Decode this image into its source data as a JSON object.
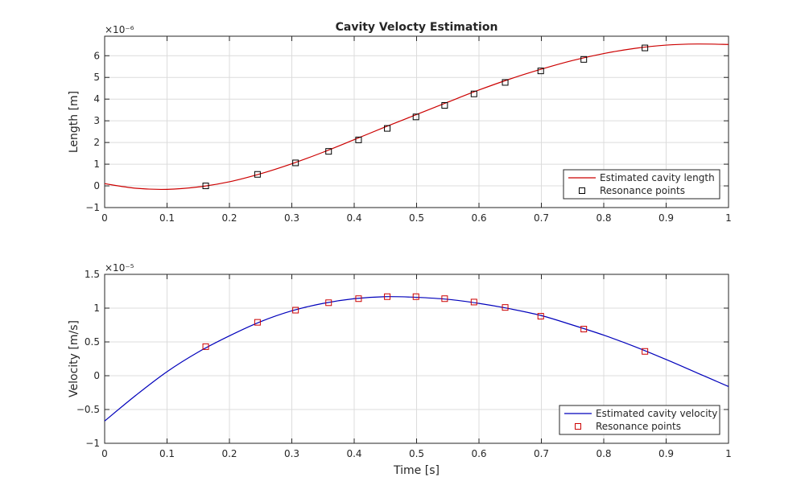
{
  "chart_data": [
    {
      "type": "line",
      "title": "Cavity Velocty Estimation",
      "xlabel": "",
      "ylabel": "Length [m]",
      "exponent_label": "×10⁻⁶",
      "exponent": 1e-06,
      "xlim": [
        0,
        1
      ],
      "ylim": [
        -1e-06,
        6.9e-06
      ],
      "x_ticks": [
        0,
        0.1,
        0.2,
        0.3,
        0.4,
        0.5,
        0.6,
        0.7,
        0.8,
        0.9,
        1
      ],
      "x_tick_labels": [
        "0",
        "0.1",
        "0.2",
        "0.3",
        "0.4",
        "0.5",
        "0.6",
        "0.7",
        "0.8",
        "0.9",
        "1"
      ],
      "y_ticks": [
        -1e-06,
        0,
        1e-06,
        2e-06,
        3e-06,
        4e-06,
        5e-06,
        6e-06
      ],
      "y_tick_labels": [
        "−1",
        "0",
        "1",
        "2",
        "3",
        "4",
        "5",
        "6"
      ],
      "grid": true,
      "legend_position": "bottom-right",
      "series": [
        {
          "name": "Estimated cavity length",
          "style": "line",
          "color": "#cc0000",
          "x": [
            0,
            0.05,
            0.1,
            0.15,
            0.2,
            0.25,
            0.3,
            0.35,
            0.4,
            0.45,
            0.5,
            0.55,
            0.6,
            0.65,
            0.7,
            0.75,
            0.8,
            0.85,
            0.9,
            0.95,
            1
          ],
          "y": [
            1e-07,
            -1.1e-07,
            -1.6e-07,
            -5e-08,
            1.9e-07,
            5.6e-07,
            1.02e-06,
            1.55e-06,
            2.13e-06,
            2.72e-06,
            3.29e-06,
            3.86e-06,
            4.42e-06,
            4.93e-06,
            5.38e-06,
            5.78e-06,
            6.1e-06,
            6.34e-06,
            6.49e-06,
            6.54e-06,
            6.52e-06
          ]
        },
        {
          "name": "Resonance points",
          "style": "marker",
          "color": "#000000",
          "x": [
            0.162,
            0.245,
            0.306,
            0.359,
            0.407,
            0.453,
            0.499,
            0.545,
            0.592,
            0.642,
            0.699,
            0.768,
            0.866
          ],
          "y": [
            0,
            5.3e-07,
            1.06e-06,
            1.59e-06,
            2.12e-06,
            2.65e-06,
            3.18e-06,
            3.71e-06,
            4.24e-06,
            4.77e-06,
            5.3e-06,
            5.83e-06,
            6.36e-06
          ]
        }
      ]
    },
    {
      "type": "line",
      "title": "",
      "xlabel": "Time [s]",
      "ylabel": "Velocity [m/s]",
      "exponent_label": "×10⁻⁵",
      "exponent": 1e-05,
      "xlim": [
        0,
        1
      ],
      "ylim": [
        -1e-05,
        1.5e-05
      ],
      "x_ticks": [
        0,
        0.1,
        0.2,
        0.3,
        0.4,
        0.5,
        0.6,
        0.7,
        0.8,
        0.9,
        1
      ],
      "x_tick_labels": [
        "0",
        "0.1",
        "0.2",
        "0.3",
        "0.4",
        "0.5",
        "0.6",
        "0.7",
        "0.8",
        "0.9",
        "1"
      ],
      "y_ticks": [
        -1e-05,
        -5e-06,
        0,
        5e-06,
        1e-05,
        1.5e-05
      ],
      "y_tick_labels": [
        "−1",
        "−0.5",
        "0",
        "0.5",
        "1",
        "1.5"
      ],
      "grid": true,
      "legend_position": "bottom-right",
      "series": [
        {
          "name": "Estimated cavity velocity",
          "style": "line",
          "color": "#0000bb",
          "x": [
            0,
            0.05,
            0.1,
            0.15,
            0.2,
            0.25,
            0.3,
            0.35,
            0.4,
            0.45,
            0.5,
            0.55,
            0.6,
            0.65,
            0.7,
            0.75,
            0.8,
            0.85,
            0.9,
            0.95,
            1
          ],
          "y": [
            -6.7e-06,
            -2.9e-06,
            6e-07,
            3.5e-06,
            5.9e-06,
            8e-06,
            9.6e-06,
            1.07e-05,
            1.14e-05,
            1.17e-05,
            1.16e-05,
            1.13e-05,
            1.07e-05,
            9.9e-06,
            8.9e-06,
            7.5e-06,
            6e-06,
            4.3e-06,
            2.4e-06,
            4e-07,
            -1.6e-06
          ]
        },
        {
          "name": "Resonance points",
          "style": "marker",
          "color": "#cc0000",
          "x": [
            0.162,
            0.245,
            0.306,
            0.359,
            0.407,
            0.453,
            0.499,
            0.545,
            0.592,
            0.642,
            0.699,
            0.768,
            0.866
          ],
          "y": [
            4.3e-06,
            7.9e-06,
            9.7e-06,
            1.08e-05,
            1.14e-05,
            1.17e-05,
            1.17e-05,
            1.14e-05,
            1.09e-05,
            1.01e-05,
            8.8e-06,
            6.9e-06,
            3.6e-06
          ]
        }
      ]
    }
  ]
}
